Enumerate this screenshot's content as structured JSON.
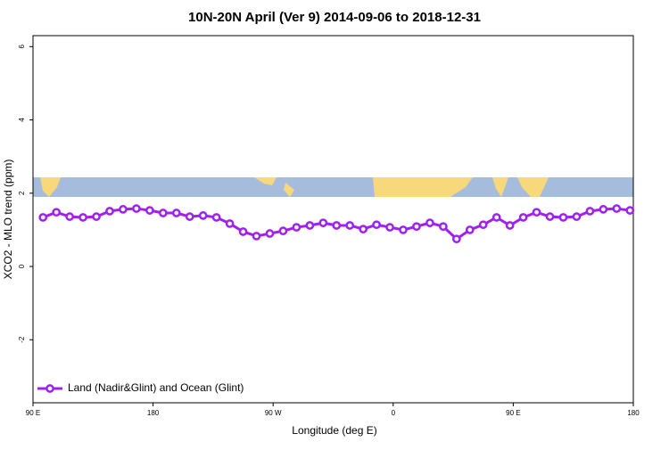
{
  "chart_data": {
    "type": "line",
    "title": "10N-20N April (Ver 9)   2014-09-06 to 2018-12-31",
    "x_label": "Longitude (deg E)",
    "y_label": "XCO2 - MLO trend (ppm)",
    "xlim": [
      90,
      540
    ],
    "ylim": [
      -3.72,
      6.3
    ],
    "xticks": [
      {
        "value": 90,
        "label": "90 E"
      },
      180,
      {
        "value": 270,
        "label": "90 W"
      },
      {
        "value": 360,
        "label": "0"
      },
      {
        "value": 450,
        "label": "90 E"
      },
      {
        "value": 540,
        "label": "180"
      }
    ],
    "yticks": [
      -2,
      0,
      2,
      4,
      6
    ],
    "legend": "bottom-left",
    "x": [
      97.5,
      107.5,
      117.5,
      127.5,
      137.5,
      147.5,
      157.5,
      167.5,
      177.5,
      187.5,
      197.5,
      207.5,
      217.5,
      227.5,
      237.5,
      247.5,
      257.5,
      267.5,
      277.5,
      287.5,
      297.5,
      307.5,
      317.5,
      327.5,
      337.5,
      347.5,
      357.5,
      367.5,
      377.5,
      387.5,
      397.5,
      407.5,
      417.5,
      427.5,
      437.5,
      447.5,
      457.5,
      467.5,
      477.5,
      487.5,
      497.5,
      507.5,
      517.5,
      527.5,
      537.5
    ],
    "series": [
      {
        "name": "Land (Nadir&Glint) and Ocean (Glint)",
        "color": "#a020f0",
        "values": [
          1.34,
          1.48,
          1.36,
          1.34,
          1.36,
          1.51,
          1.56,
          1.58,
          1.53,
          1.46,
          1.46,
          1.36,
          1.39,
          1.34,
          1.17,
          0.95,
          0.83,
          0.9,
          0.97,
          1.07,
          1.12,
          1.19,
          1.12,
          1.12,
          1.02,
          1.14,
          1.07,
          1.0,
          1.09,
          1.19,
          1.09,
          0.75,
          1.0,
          1.14,
          1.34,
          1.12,
          1.34,
          1.48,
          1.36,
          1.34,
          1.36,
          1.51,
          1.56,
          1.58,
          1.53
        ]
      }
    ]
  }
}
